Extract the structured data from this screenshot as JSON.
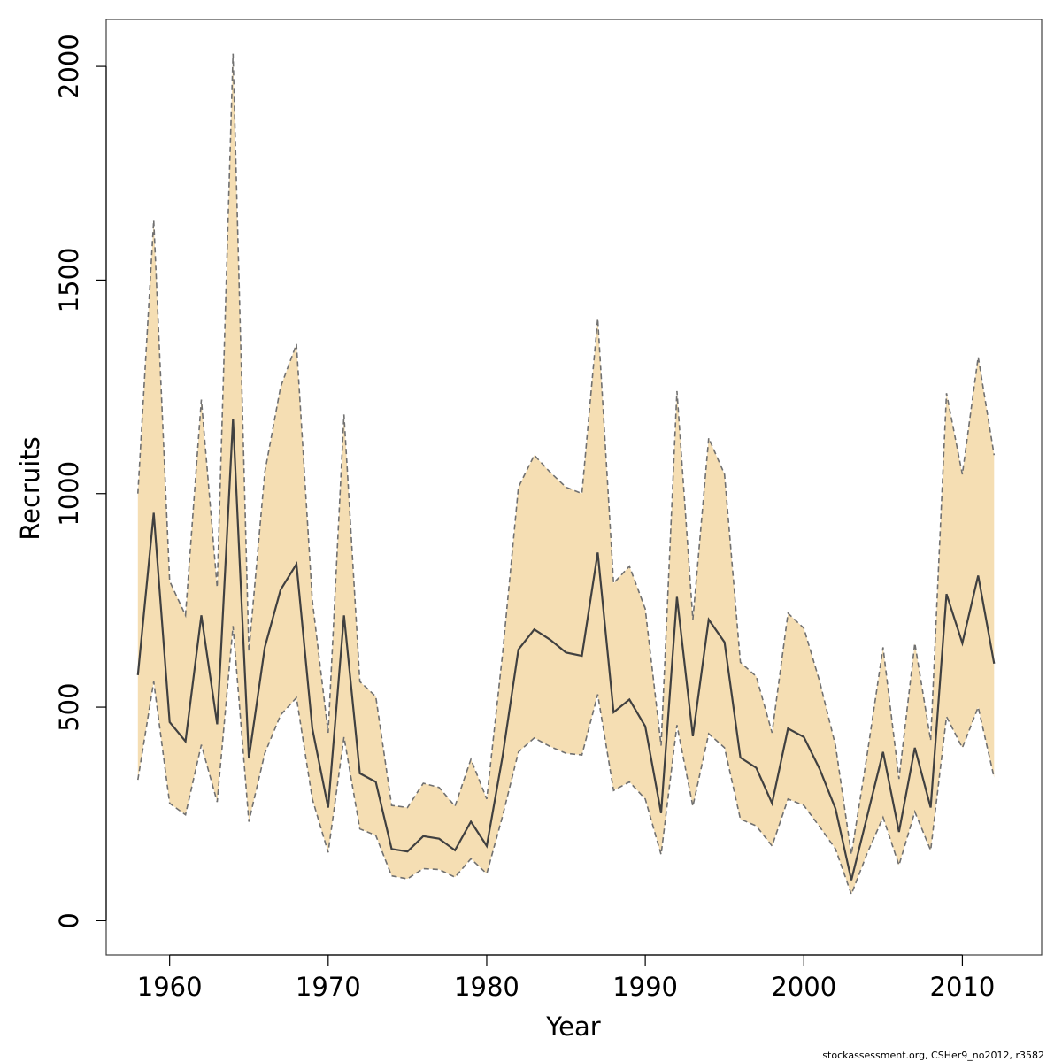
{
  "chart_data": {
    "type": "area",
    "title": "",
    "xlabel": "Year",
    "ylabel": "Recruits",
    "xlim": [
      1956,
      2015
    ],
    "ylim": [
      -80,
      2110
    ],
    "x_ticks": [
      1960,
      1970,
      1980,
      1990,
      2000,
      2010
    ],
    "y_ticks": [
      0,
      500,
      1000,
      1500,
      2000
    ],
    "grid": false,
    "legend": "none",
    "colors": {
      "band": "#f5deb3",
      "median": "#404040",
      "bounds": "#707070",
      "frame": "#404040"
    },
    "years": [
      1958,
      1959,
      1960,
      1961,
      1962,
      1963,
      1964,
      1965,
      1966,
      1967,
      1968,
      1969,
      1970,
      1971,
      1972,
      1973,
      1974,
      1975,
      1976,
      1977,
      1978,
      1979,
      1980,
      1981,
      1982,
      1983,
      1984,
      1985,
      1986,
      1987,
      1988,
      1989,
      1990,
      1991,
      1992,
      1993,
      1994,
      1995,
      1996,
      1997,
      1998,
      1999,
      2000,
      2001,
      2002,
      2003,
      2004,
      2005,
      2006,
      2007,
      2008,
      2009,
      2010,
      2011,
      2012
    ],
    "series": [
      {
        "role": "median",
        "values": [
          575,
          955,
          465,
          420,
          715,
          460,
          1175,
          380,
          640,
          775,
          835,
          450,
          265,
          715,
          345,
          325,
          168,
          162,
          198,
          192,
          165,
          232,
          175,
          385,
          635,
          682,
          658,
          628,
          620,
          862,
          488,
          518,
          455,
          252,
          758,
          432,
          705,
          652,
          382,
          358,
          275,
          450,
          430,
          355,
          262,
          95,
          245,
          395,
          208,
          405,
          265,
          765,
          650,
          808,
          602
        ]
      },
      {
        "role": "lower",
        "values": [
          330,
          560,
          275,
          248,
          412,
          278,
          690,
          232,
          392,
          482,
          522,
          285,
          160,
          430,
          215,
          200,
          105,
          98,
          122,
          120,
          102,
          145,
          110,
          245,
          395,
          428,
          408,
          392,
          388,
          530,
          305,
          325,
          285,
          155,
          458,
          268,
          438,
          405,
          238,
          222,
          175,
          285,
          270,
          220,
          168,
          62,
          158,
          242,
          130,
          255,
          165,
          478,
          405,
          500,
          335
        ]
      },
      {
        "role": "upper",
        "values": [
          1000,
          1640,
          795,
          715,
          1220,
          780,
          2030,
          630,
          1050,
          1250,
          1350,
          750,
          440,
          1185,
          560,
          525,
          270,
          265,
          322,
          312,
          268,
          378,
          285,
          625,
          1015,
          1090,
          1050,
          1015,
          1000,
          1410,
          790,
          830,
          730,
          410,
          1240,
          705,
          1130,
          1045,
          605,
          572,
          440,
          720,
          685,
          560,
          410,
          155,
          390,
          640,
          332,
          650,
          422,
          1235,
          1045,
          1320,
          1090
        ]
      }
    ]
  },
  "footer": {
    "credit": "stockassessment.org, CSHer9_no2012, r3582"
  }
}
